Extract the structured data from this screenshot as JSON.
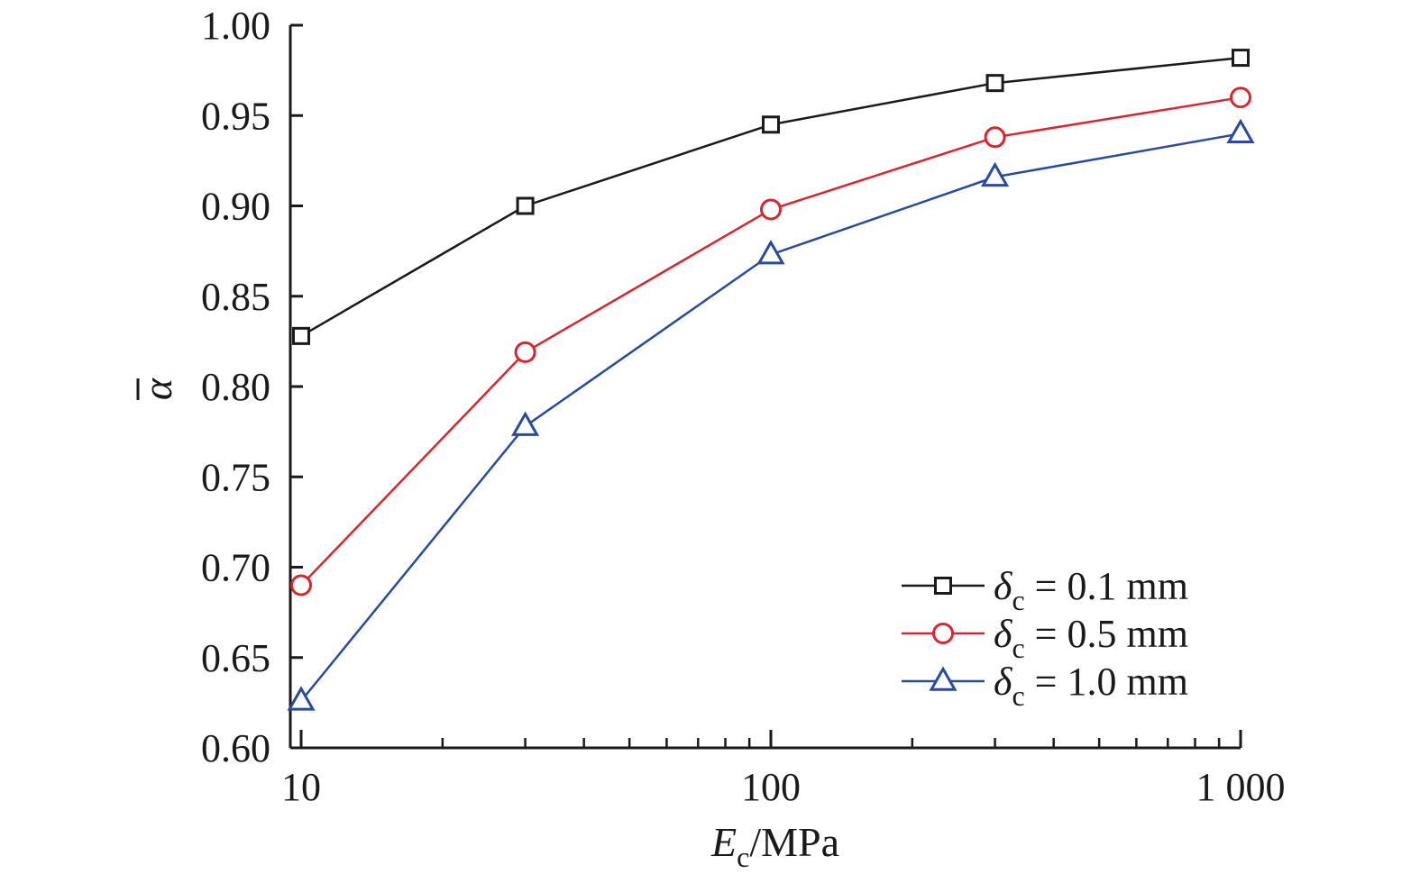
{
  "chart_data": {
    "type": "line",
    "x_scale": "log",
    "xlim": [
      10,
      1000
    ],
    "ylim": [
      0.6,
      1.0
    ],
    "grid": false,
    "legend_position": "bottom-right",
    "xlabel": {
      "main": "E",
      "sub": "c",
      "rest": "/MPa"
    },
    "ylabel": {
      "main": "α",
      "bar": true
    },
    "y_ticks": [
      {
        "value": 0.6,
        "label": "0.60"
      },
      {
        "value": 0.65,
        "label": "0.65"
      },
      {
        "value": 0.7,
        "label": "0.70"
      },
      {
        "value": 0.75,
        "label": "0.75"
      },
      {
        "value": 0.8,
        "label": "0.80"
      },
      {
        "value": 0.85,
        "label": "0.85"
      },
      {
        "value": 0.9,
        "label": "0.90"
      },
      {
        "value": 0.95,
        "label": "0.95"
      },
      {
        "value": 1.0,
        "label": "1.00"
      }
    ],
    "x_major_ticks": [
      {
        "value": 10,
        "label": "10"
      },
      {
        "value": 100,
        "label": "100"
      },
      {
        "value": 1000,
        "label": "1 000"
      }
    ],
    "x_minor_ticks": [
      20,
      30,
      40,
      50,
      60,
      70,
      80,
      90,
      200,
      300,
      400,
      500,
      600,
      700,
      800,
      900
    ],
    "series": [
      {
        "name": {
          "symbol": "δ",
          "sub": "c",
          "rest": " = 0.1 mm"
        },
        "marker": "square",
        "color": "#1a1a1a",
        "points": [
          [
            10,
            0.828
          ],
          [
            30,
            0.9
          ],
          [
            100,
            0.945
          ],
          [
            300,
            0.968
          ],
          [
            1000,
            0.982
          ]
        ]
      },
      {
        "name": {
          "symbol": "δ",
          "sub": "c",
          "rest": " = 0.5 mm"
        },
        "marker": "circle",
        "color": "#d9262e",
        "points": [
          [
            10,
            0.69
          ],
          [
            30,
            0.819
          ],
          [
            100,
            0.898
          ],
          [
            300,
            0.938
          ],
          [
            1000,
            0.96
          ]
        ]
      },
      {
        "name": {
          "symbol": "δ",
          "sub": "c",
          "rest": " = 1.0 mm"
        },
        "marker": "triangle",
        "color": "#2a4a9e",
        "points": [
          [
            10,
            0.626
          ],
          [
            30,
            0.778
          ],
          [
            100,
            0.873
          ],
          [
            300,
            0.916
          ],
          [
            1000,
            0.94
          ]
        ]
      }
    ]
  }
}
